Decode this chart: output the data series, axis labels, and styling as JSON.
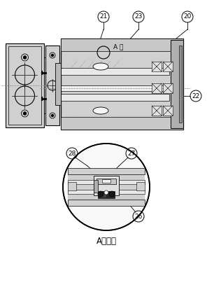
{
  "bg_color": "#ffffff",
  "line_color": "#000000",
  "gray_light": "#d0d0d0",
  "gray_mid": "#b0b0b0",
  "gray_dark": "#808080",
  "title_main": "A部詳細",
  "label_apart": "A 部",
  "fig_width": 2.96,
  "fig_height": 4.37,
  "dpi": 100
}
